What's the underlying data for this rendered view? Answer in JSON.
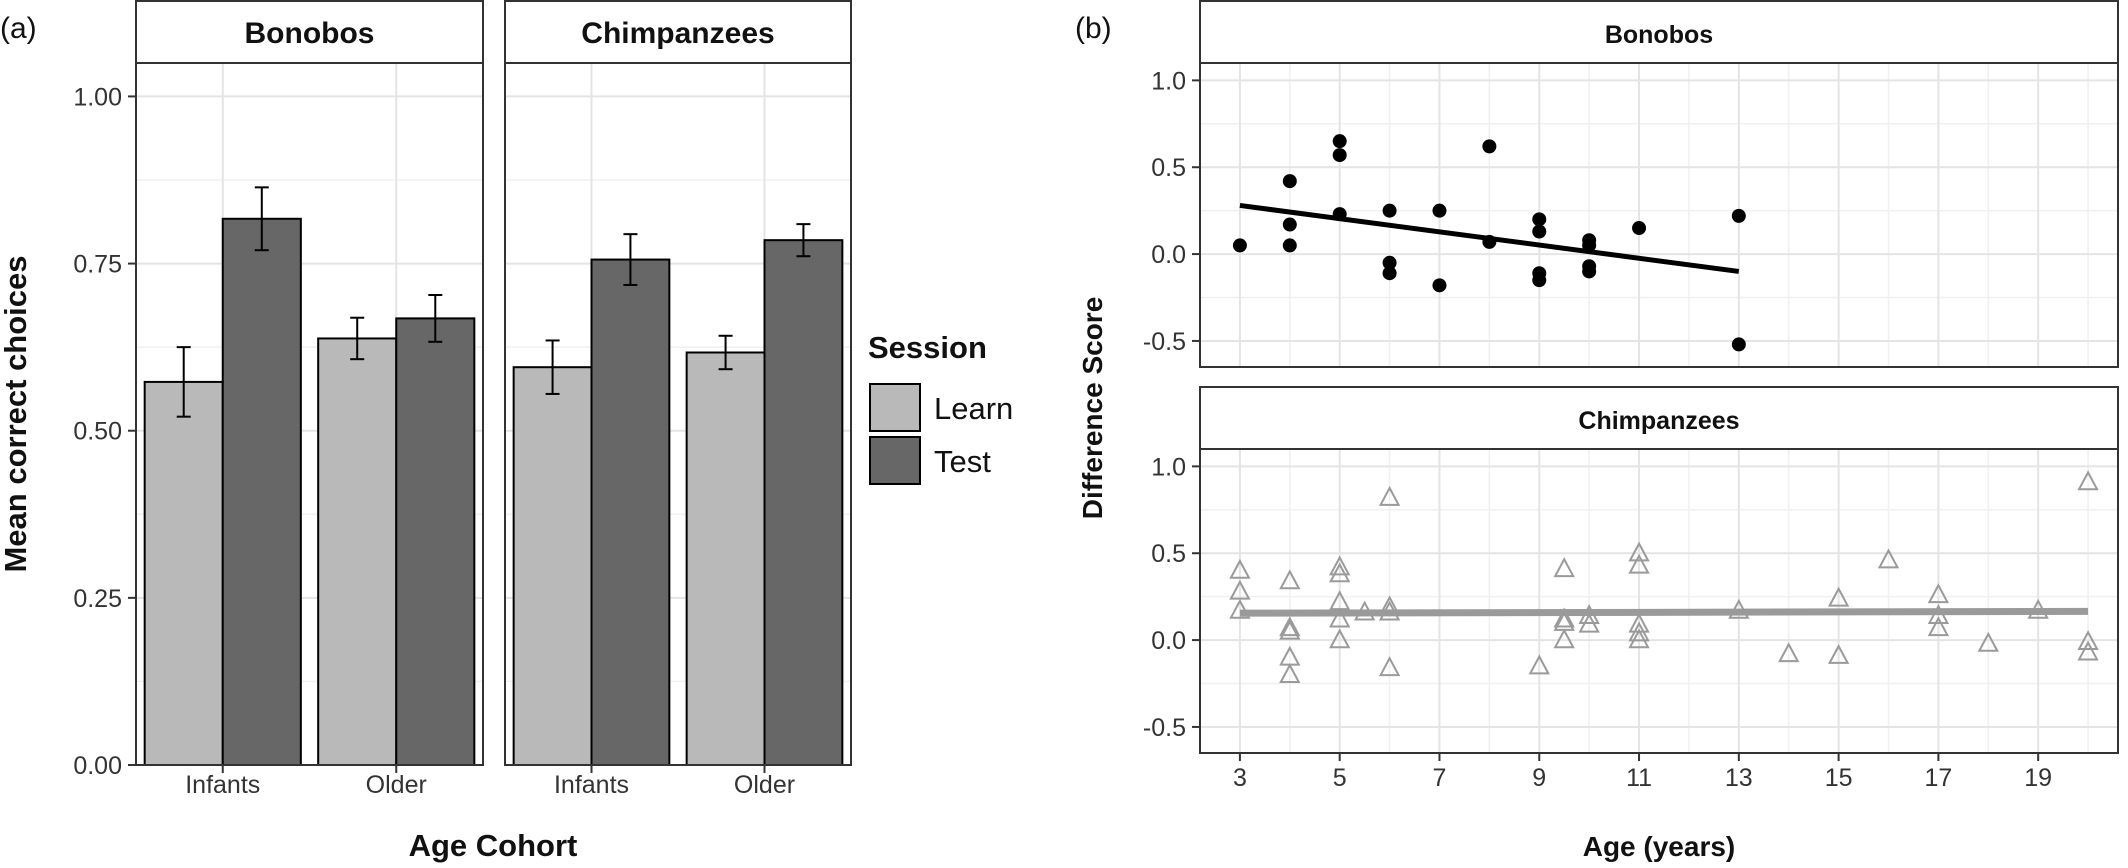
{
  "panel_labels": {
    "a": "(a)",
    "b": "(b)"
  },
  "chart_data": [
    {
      "id": "a",
      "type": "bar",
      "facets": [
        "Bonobos",
        "Chimpanzees"
      ],
      "categories": [
        "Infants",
        "Older"
      ],
      "xlabel": "Age Cohort",
      "ylabel": "Mean correct choices",
      "ylim": [
        0,
        1.05
      ],
      "yticks": [
        0.0,
        0.25,
        0.5,
        0.75,
        1.0
      ],
      "ytick_labels": [
        "0.00",
        "0.25",
        "0.50",
        "0.75",
        "1.00"
      ],
      "grid": true,
      "legend": {
        "title": "Session",
        "placement": "right",
        "entries": [
          {
            "name": "Learn",
            "color": "#b9b9b9"
          },
          {
            "name": "Test",
            "color": "#676767"
          }
        ]
      },
      "series": [
        {
          "name": "Learn",
          "color": "#b9b9b9",
          "values": {
            "Bonobos": [
              0.573,
              0.638
            ],
            "Chimpanzees": [
              0.595,
              0.617
            ]
          },
          "errors": {
            "Bonobos": [
              0.052,
              0.031
            ],
            "Chimpanzees": [
              0.04,
              0.025
            ]
          }
        },
        {
          "name": "Test",
          "color": "#676767",
          "values": {
            "Bonobos": [
              0.817,
              0.668
            ],
            "Chimpanzees": [
              0.756,
              0.785
            ]
          },
          "errors": {
            "Bonobos": [
              0.047,
              0.035
            ],
            "Chimpanzees": [
              0.038,
              0.024
            ]
          }
        }
      ]
    },
    {
      "id": "b",
      "type": "scatter",
      "facets": [
        "Bonobos",
        "Chimpanzees"
      ],
      "xlabel": "Age (years)",
      "ylabel": "Difference Score",
      "xlim": [
        2.2,
        20.6
      ],
      "ylim": [
        -0.65,
        1.1
      ],
      "xticks": [
        3,
        5,
        7,
        9,
        11,
        13,
        15,
        17,
        19
      ],
      "yticks": [
        -0.5,
        0.0,
        0.5,
        1.0
      ],
      "ytick_labels": [
        "-0.5",
        "0.0",
        "0.5",
        "1.0"
      ],
      "grid": true,
      "series": [
        {
          "name": "Bonobos",
          "marker": "circle",
          "color": "#000000",
          "points": [
            [
              3,
              0.05
            ],
            [
              4,
              0.42
            ],
            [
              4,
              0.17
            ],
            [
              4,
              0.05
            ],
            [
              5,
              0.65
            ],
            [
              5,
              0.57
            ],
            [
              5,
              0.23
            ],
            [
              6,
              0.25
            ],
            [
              6,
              -0.05
            ],
            [
              6,
              -0.11
            ],
            [
              7,
              0.25
            ],
            [
              7,
              -0.18
            ],
            [
              8,
              0.62
            ],
            [
              8,
              0.07
            ],
            [
              9,
              0.2
            ],
            [
              9,
              0.13
            ],
            [
              9,
              -0.11
            ],
            [
              9,
              -0.15
            ],
            [
              10,
              0.08
            ],
            [
              10,
              0.05
            ],
            [
              10,
              -0.07
            ],
            [
              10,
              -0.1
            ],
            [
              11,
              0.15
            ],
            [
              13,
              0.22
            ],
            [
              13,
              -0.52
            ]
          ],
          "fit": {
            "x": [
              3,
              13
            ],
            "y": [
              0.28,
              -0.1
            ],
            "color": "#000000"
          }
        },
        {
          "name": "Chimpanzees",
          "marker": "triangle-open",
          "color": "#9a9a9a",
          "points": [
            [
              3,
              0.4
            ],
            [
              3,
              0.28
            ],
            [
              3,
              0.17
            ],
            [
              4,
              0.34
            ],
            [
              4,
              0.07
            ],
            [
              4,
              0.05
            ],
            [
              4,
              -0.1
            ],
            [
              4,
              -0.2
            ],
            [
              5,
              0.42
            ],
            [
              5,
              0.38
            ],
            [
              5,
              0.22
            ],
            [
              5,
              0.12
            ],
            [
              5,
              0.0
            ],
            [
              5.5,
              0.16
            ],
            [
              6,
              0.82
            ],
            [
              6,
              0.19
            ],
            [
              6,
              0.16
            ],
            [
              6,
              -0.16
            ],
            [
              9,
              -0.15
            ],
            [
              9.5,
              0.41
            ],
            [
              9.5,
              0.12
            ],
            [
              9.5,
              0.1
            ],
            [
              9.5,
              0.0
            ],
            [
              10,
              0.14
            ],
            [
              10,
              0.09
            ],
            [
              11,
              0.5
            ],
            [
              11,
              0.43
            ],
            [
              11,
              0.09
            ],
            [
              11,
              0.04
            ],
            [
              11,
              0.0
            ],
            [
              13,
              0.17
            ],
            [
              14,
              -0.08
            ],
            [
              15,
              0.24
            ],
            [
              15,
              -0.09
            ],
            [
              16,
              0.46
            ],
            [
              17,
              0.26
            ],
            [
              17,
              0.14
            ],
            [
              17,
              0.07
            ],
            [
              18,
              -0.02
            ],
            [
              19,
              0.17
            ],
            [
              20,
              0.91
            ],
            [
              20,
              -0.01
            ],
            [
              20,
              -0.07
            ]
          ],
          "fit": {
            "x": [
              3,
              20
            ],
            "y": [
              0.155,
              0.165
            ],
            "color": "#9a9a9a"
          }
        }
      ]
    }
  ]
}
